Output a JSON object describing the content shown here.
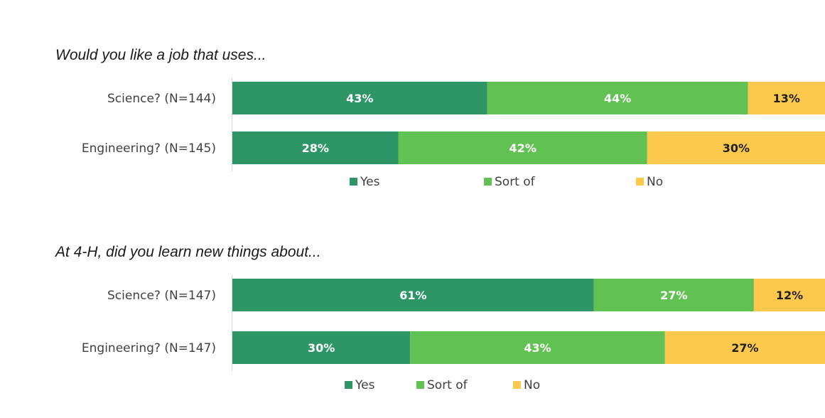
{
  "chart_data": [
    {
      "type": "bar",
      "orientation": "horizontal",
      "stacked": "percent",
      "title": "Would you like a job that uses...",
      "categories": [
        "Science? (N=144)",
        "Engineering? (N=145)"
      ],
      "series": [
        {
          "name": "Yes",
          "values": [
            43,
            28
          ],
          "labels": [
            "43%",
            "28%"
          ]
        },
        {
          "name": "Sort of",
          "values": [
            44,
            42
          ],
          "labels": [
            "44%",
            "42%"
          ]
        },
        {
          "name": "No",
          "values": [
            13,
            30
          ],
          "labels": [
            "13%",
            "30%"
          ]
        }
      ],
      "xlim": [
        0,
        100
      ],
      "legend": "bottom",
      "grid": false
    },
    {
      "type": "bar",
      "orientation": "horizontal",
      "stacked": "percent",
      "title": "At 4-H, did you learn new things about...",
      "categories": [
        "Science? (N=147)",
        "Engineering? (N=147)"
      ],
      "series": [
        {
          "name": "Yes",
          "values": [
            61,
            30
          ],
          "labels": [
            "61%",
            "30%"
          ]
        },
        {
          "name": "Sort of",
          "values": [
            27,
            43
          ],
          "labels": [
            "27%",
            "43%"
          ]
        },
        {
          "name": "No",
          "values": [
            12,
            27
          ],
          "labels": [
            "12%",
            "27%"
          ]
        }
      ],
      "xlim": [
        0,
        100
      ],
      "legend": "bottom",
      "grid": false
    }
  ],
  "colors": {
    "Yes": "#2e9566",
    "Sort of": "#62c153",
    "No": "#fcc94c",
    "label_on_dark": "#ffffff",
    "label_on_light": "#1f1f1f"
  }
}
